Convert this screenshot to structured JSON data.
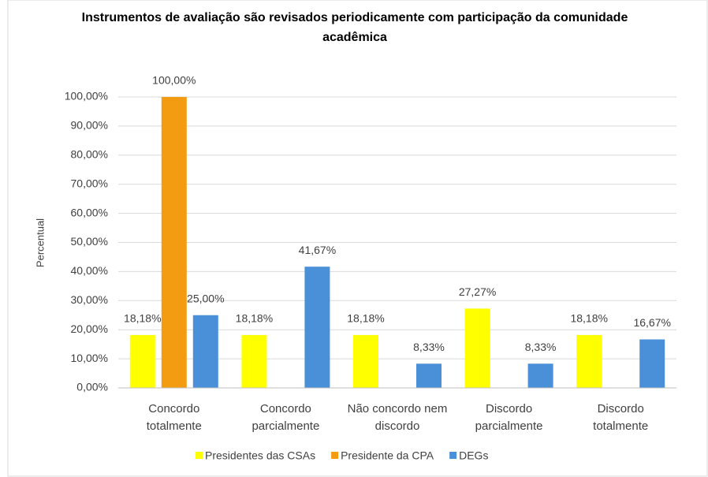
{
  "chart_data": {
    "type": "bar",
    "title": "Instrumentos de avaliação são revisados periodicamente com participação da comunidade acadêmica",
    "y_label": "Percentual",
    "categories": [
      "Concordo totalmente",
      "Concordo parcialmente",
      "Não concordo nem discordo",
      "Discordo parcialmente",
      "Discordo totalmente"
    ],
    "series": [
      {
        "name": "Presidentes das CSAs",
        "color": "#ffff00",
        "values": [
          18.18,
          18.18,
          18.18,
          27.27,
          18.18
        ],
        "value_labels": [
          "18,18%",
          "18,18%",
          "18,18%",
          "27,27%",
          "18,18%"
        ]
      },
      {
        "name": "Presidente da CPA",
        "color": "#f39c12",
        "values": [
          100,
          0,
          0,
          0,
          0
        ],
        "value_labels": [
          "100,00%",
          null,
          null,
          null,
          null
        ]
      },
      {
        "name": "DEGs",
        "color": "#4a90d9",
        "values": [
          25,
          41.67,
          8.33,
          8.33,
          16.67
        ],
        "value_labels": [
          "25,00%",
          "41,67%",
          "8,33%",
          "8,33%",
          "16,67%"
        ]
      }
    ],
    "ylim": [
      0,
      100
    ],
    "yticks": [
      {
        "value": 0,
        "label": "0,00%"
      },
      {
        "value": 10,
        "label": "10,00%"
      },
      {
        "value": 20,
        "label": "20,00%"
      },
      {
        "value": 30,
        "label": "30,00%"
      },
      {
        "value": 40,
        "label": "40,00%"
      },
      {
        "value": 50,
        "label": "50,00%"
      },
      {
        "value": 60,
        "label": "60,00%"
      },
      {
        "value": 70,
        "label": "70,00%"
      },
      {
        "value": 80,
        "label": "80,00%"
      },
      {
        "value": 90,
        "label": "90,00%"
      },
      {
        "value": 100,
        "label": "100,00%"
      }
    ],
    "grid": true,
    "legend": "bottom"
  }
}
